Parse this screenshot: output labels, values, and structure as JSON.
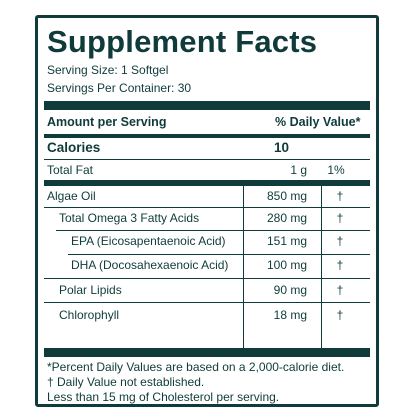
{
  "label": {
    "title": "Supplement Facts",
    "serving_size": "Serving Size: 1 Softgel",
    "servings_per_container": "Servings Per Container: 30",
    "header_amount": "Amount per Serving",
    "header_dv": "% Daily Value*",
    "calories_label": "Calories",
    "calories_value": "10",
    "rows": [
      {
        "name": "Total Fat",
        "amount": "1 g",
        "dv": "1%"
      },
      {
        "name": "Algae Oil",
        "amount": "850 mg",
        "dv": "†"
      },
      {
        "name": "Total Omega 3 Fatty Acids",
        "amount": "280 mg",
        "dv": "†"
      },
      {
        "name": "EPA (Eicosapentaenoic Acid)",
        "amount": "151 mg",
        "dv": "†"
      },
      {
        "name": "DHA (Docosahexaenoic Acid)",
        "amount": "100 mg",
        "dv": "†"
      },
      {
        "name": "Polar Lipids",
        "amount": "90 mg",
        "dv": "†"
      },
      {
        "name": "Chlorophyll",
        "amount": "18 mg",
        "dv": "†"
      }
    ],
    "footnotes": [
      "*Percent Daily Values are based on a 2,000-calorie diet.",
      "† Daily Value not established.",
      "Less than 15 mg of Cholesterol per serving."
    ]
  },
  "colors": {
    "ink": "#0f3b3a",
    "background": "#ffffff"
  }
}
